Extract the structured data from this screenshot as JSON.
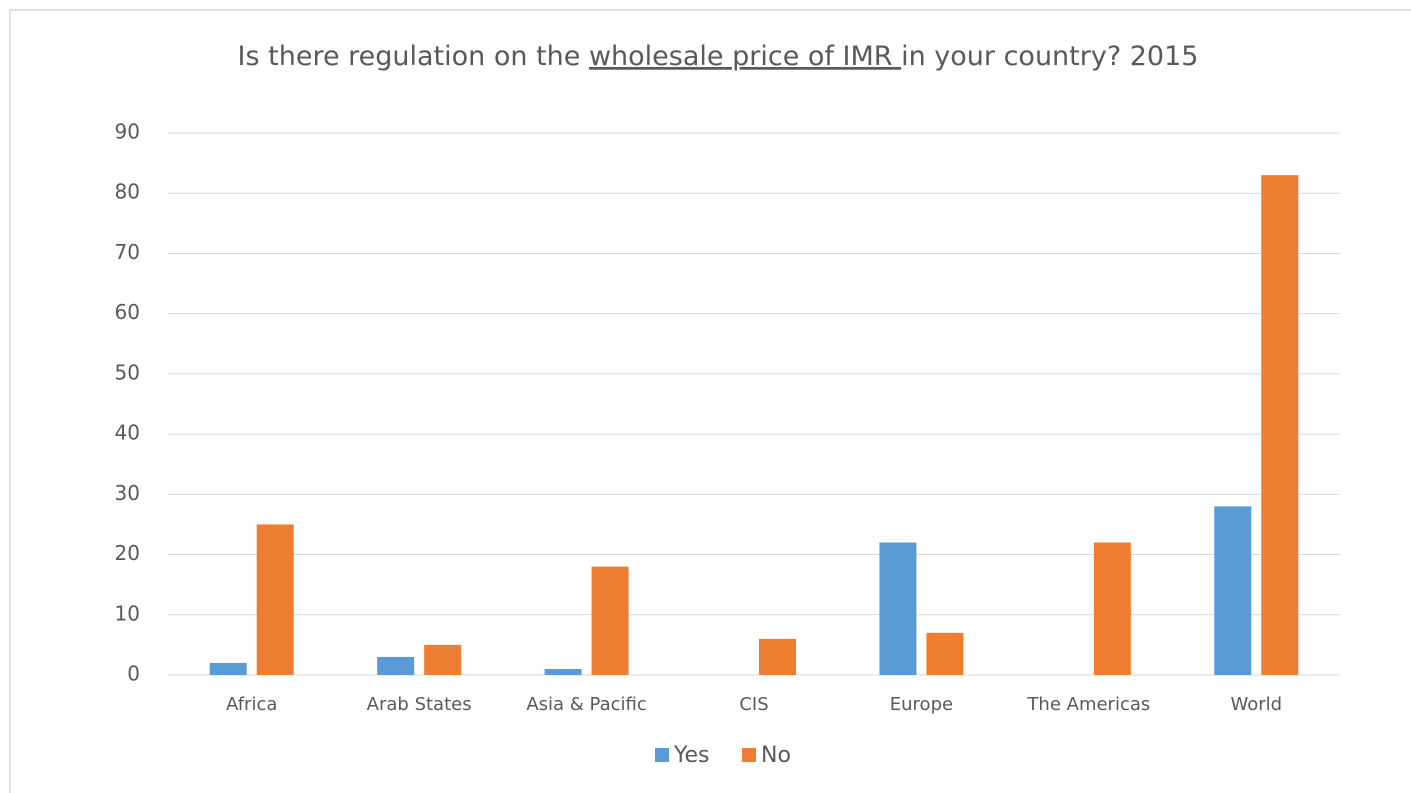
{
  "chart_data": {
    "type": "bar",
    "title": [
      {
        "text": "Is there regulation on the ",
        "underline": false
      },
      {
        "text": "wholesale price of IMR ",
        "underline": true
      },
      {
        "text": "in your country? 2015",
        "underline": false
      }
    ],
    "categories": [
      "Africa",
      "Arab States",
      "Asia & Pacific",
      "CIS",
      "Europe",
      "The Americas",
      "World"
    ],
    "series": [
      {
        "name": "Yes",
        "color": "#5b9bd5",
        "values": [
          2,
          3,
          1,
          0,
          22,
          0,
          28
        ]
      },
      {
        "name": "No",
        "color": "#ed7d31",
        "values": [
          25,
          5,
          18,
          6,
          7,
          22,
          83
        ]
      }
    ],
    "ylim": [
      0,
      90
    ],
    "yticks": [
      0,
      10,
      20,
      30,
      40,
      50,
      60,
      70,
      80,
      90
    ],
    "grid": true,
    "legend": "bottom"
  }
}
